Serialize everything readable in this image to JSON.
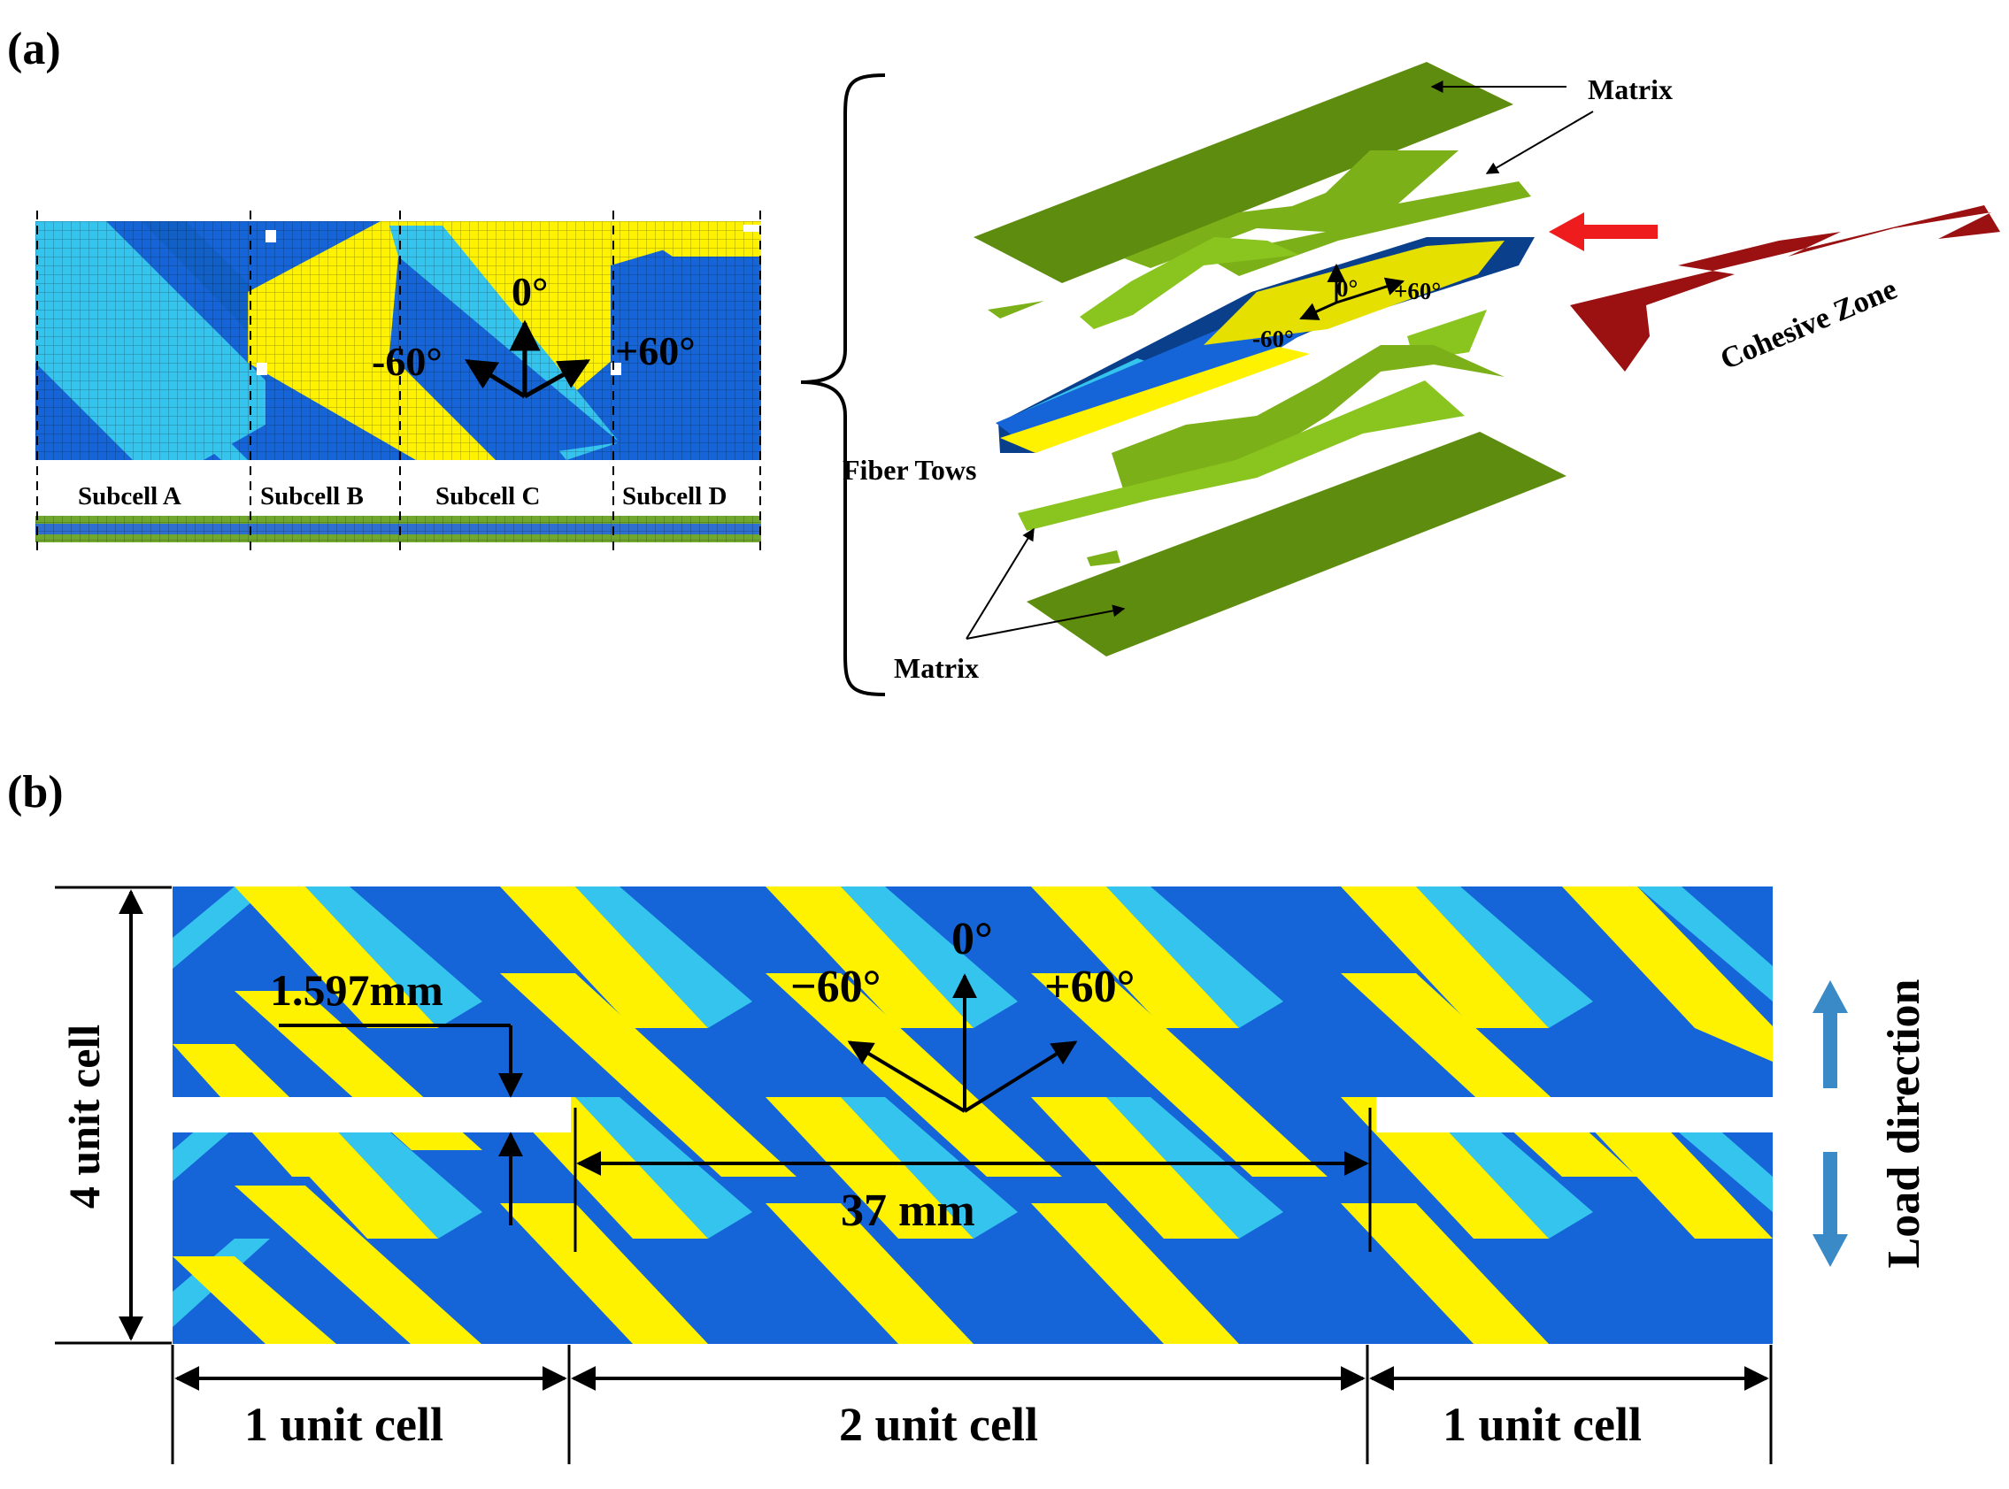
{
  "panel_a": {
    "label": "(a)",
    "subcells": [
      "Subcell  A",
      "Subcell  B",
      "Subcell  C",
      "Subcell  D"
    ],
    "angles": {
      "zero": "0°",
      "minus": "-60°",
      "plus": "+60°"
    },
    "exploded_angles": {
      "zero": "0°",
      "minus": "-60°",
      "plus": "+60°"
    },
    "labels": {
      "matrix_top": "Matrix",
      "matrix_bottom": "Matrix",
      "fiber_tows": "Fiber Tows",
      "cohesive_zone": "Cohesive Zone"
    }
  },
  "panel_b": {
    "label": "(b)",
    "angles": {
      "zero": "0°",
      "minus": "−60°",
      "plus": "+60°"
    },
    "notch_depth": "1.597mm",
    "notch_spacing": "37 mm",
    "height_label": "4 unit cell",
    "width_labels": [
      "1 unit cell",
      "2 unit cell",
      "1 unit cell"
    ],
    "load_label": "Load direction"
  },
  "colors": {
    "dark_blue": "#1565d8",
    "cyan": "#35c4ee",
    "yellow": "#fff200",
    "matrix_green": "#5e8c0e",
    "cohesive_red": "#9b1010",
    "load_arrow": "#3a8ac8",
    "red_arrow": "#ee1c1c"
  }
}
